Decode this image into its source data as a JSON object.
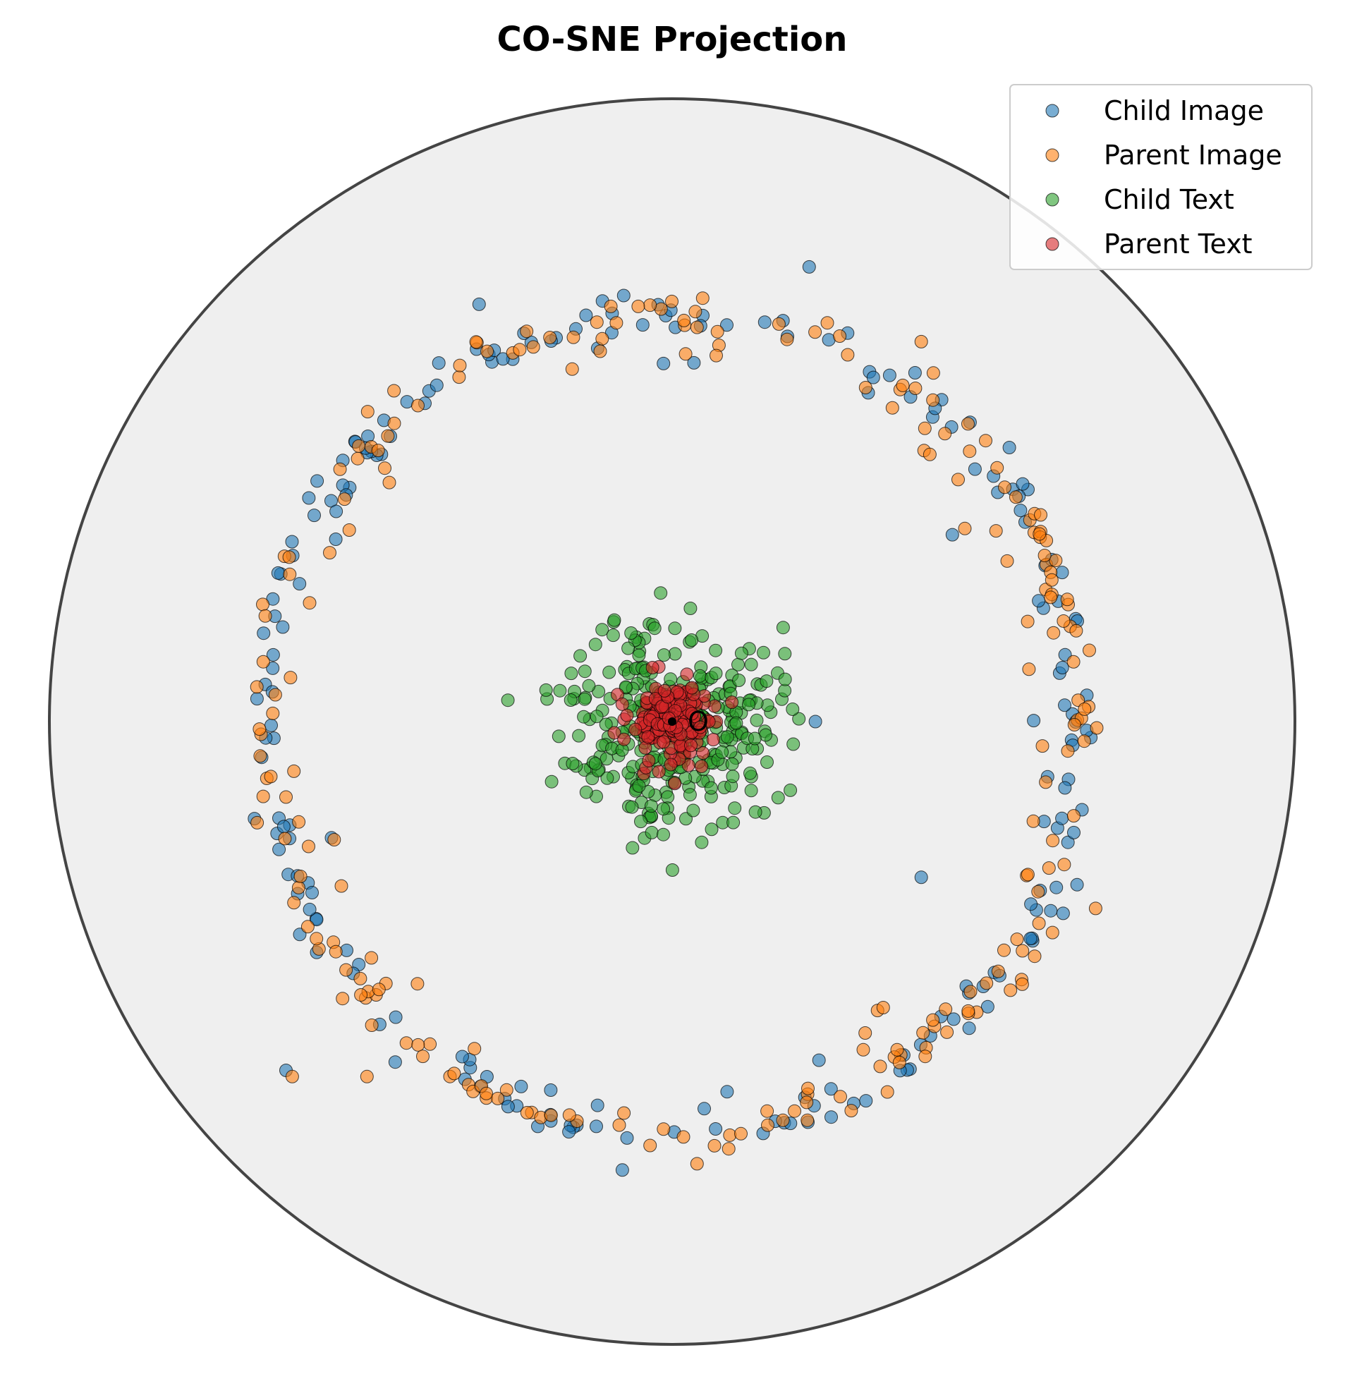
{
  "chart_data": {
    "type": "scatter",
    "title": "CO-SNE Projection",
    "xlabel": "",
    "ylabel": "",
    "xlim": [
      -1,
      1
    ],
    "ylim": [
      -1,
      1
    ],
    "axes_visible": false,
    "grid": false,
    "disk": {
      "radius": 1,
      "fill": "#efefef",
      "stroke": "#444444"
    },
    "origin_marker": {
      "x": 0,
      "y": 0,
      "label": "O"
    },
    "legend": {
      "placement": "top-right",
      "entries": [
        "Child Image",
        "Parent Image",
        "Child Text",
        "Parent Text"
      ]
    },
    "series": [
      {
        "name": "Child Image",
        "color": "#1f77b4",
        "generator": "ring",
        "count": 210,
        "radius": 0.66,
        "seed": 11,
        "outliers": [
          [
            0.23,
            0.0
          ],
          [
            0.4,
            -0.25
          ],
          [
            0.45,
            0.3
          ],
          [
            -0.31,
            0.67
          ],
          [
            0.22,
            0.73
          ],
          [
            0.39,
            0.56
          ],
          [
            -0.62,
            -0.56
          ],
          [
            -0.08,
            -0.72
          ]
        ]
      },
      {
        "name": "Parent Image",
        "color": "#ff7f0e",
        "generator": "ring",
        "count": 230,
        "radius": 0.66,
        "seed": 23,
        "outliers": [
          [
            0.47,
            0.31
          ],
          [
            0.58,
            -0.16
          ],
          [
            0.31,
            -0.5
          ],
          [
            -0.49,
            -0.57
          ],
          [
            0.04,
            -0.71
          ],
          [
            -0.61,
            -0.57
          ],
          [
            0.68,
            -0.3
          ],
          [
            0.4,
            0.61
          ]
        ]
      },
      {
        "name": "Child Text",
        "color": "#2ca02c",
        "generator": "cluster",
        "count": 320,
        "center": [
          0.0,
          0.0
        ],
        "spread": 0.085,
        "seed": 37
      },
      {
        "name": "Parent Text",
        "color": "#d62728",
        "generator": "cluster",
        "count": 170,
        "center": [
          0.0,
          0.0
        ],
        "spread": 0.035,
        "seed": 53
      }
    ]
  }
}
